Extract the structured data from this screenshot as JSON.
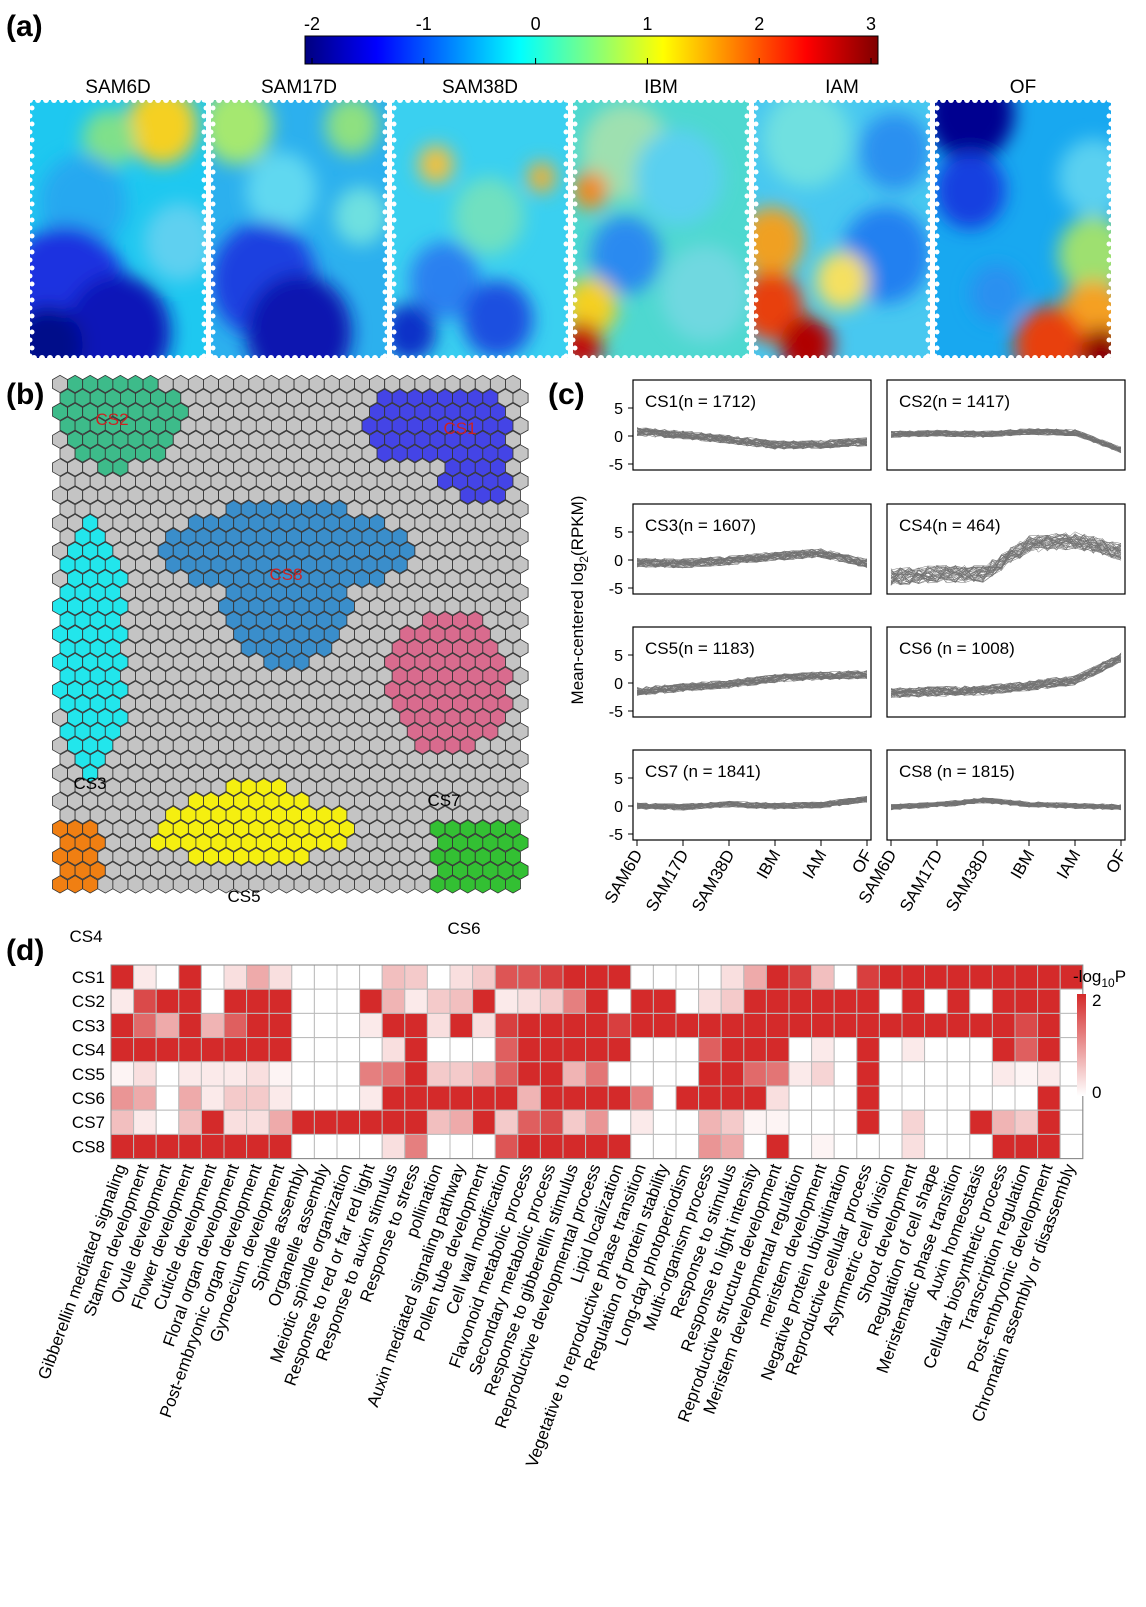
{
  "panels": {
    "a": {
      "label": "(a)",
      "colorbar": {
        "ticks": [
          "-2",
          "-1",
          "0",
          "1",
          "2",
          "3"
        ],
        "range": [
          -2,
          3
        ],
        "colormap": "jet"
      },
      "maps": [
        "SAM6D",
        "SAM17D",
        "SAM38D",
        "IBM",
        "IAM",
        "OF"
      ]
    },
    "b": {
      "label": "(b)",
      "clusters": [
        {
          "name": "CS1",
          "color": "#4444e6",
          "label_color": "#cc2222"
        },
        {
          "name": "CS2",
          "color": "#3dbb8a",
          "label_color": "#cc2222"
        },
        {
          "name": "CS3",
          "color": "#22e6ec",
          "label_color": "#000000"
        },
        {
          "name": "CS4",
          "color": "#f07f12",
          "label_color": "#000000"
        },
        {
          "name": "CS5",
          "color": "#f5ef10",
          "label_color": "#000000"
        },
        {
          "name": "CS6",
          "color": "#33c033",
          "label_color": "#000000"
        },
        {
          "name": "CS7",
          "color": "#d96b8e",
          "label_color": "#000000"
        },
        {
          "name": "CS8",
          "color": "#3a8ecb",
          "label_color": "#cc2222"
        }
      ],
      "background_color": "#c4c4c4"
    },
    "c": {
      "label": "(c)",
      "ylabel_main": "Mean-centered log",
      "ylabel_sub": "2",
      "ylabel_tail": "(RPKM)",
      "yticks": [
        "5",
        "0",
        "-5"
      ],
      "xticks": [
        "SAM6D",
        "SAM17D",
        "SAM38D",
        "IBM",
        "IAM",
        "OF"
      ],
      "boxes": [
        {
          "title": "CS1(n = 1712)"
        },
        {
          "title": "CS2(n = 1417)"
        },
        {
          "title": "CS3(n = 1607)"
        },
        {
          "title": "CS4(n = 464)"
        },
        {
          "title": "CS5(n = 1183)"
        },
        {
          "title": "CS6 (n = 1008)"
        },
        {
          "title": "CS7 (n = 1841)"
        },
        {
          "title": "CS8 (n = 1815)"
        }
      ]
    },
    "d": {
      "label": "(d)",
      "legend_title": "-log",
      "legend_sub": "10",
      "legend_tail": "P",
      "legend_max": "2",
      "legend_min": "0",
      "color": "#d42a2a"
    }
  },
  "chart_data": {
    "type": "heatmap",
    "title": "",
    "rows": [
      "CS1",
      "CS2",
      "CS3",
      "CS4",
      "CS5",
      "CS6",
      "CS7",
      "CS8"
    ],
    "columns": [
      "Gibberellin mediated signaling",
      "Stamen development",
      "Ovule development",
      "Flower development",
      "Cuticle development",
      "Floral organ development",
      "Post-embryonic organ development",
      "Gynoecium development",
      "Spindle assembly",
      "Organelle assembly",
      "Meiotic spindle organization",
      "Response to red or far red light",
      "Response to auxin stimulus",
      "Response to stress",
      "pollination",
      "Auxin mediated signaling pathway",
      "Pollen tube development",
      "Cell wall modification",
      "Flavonoid metabolic process",
      "Secondary metabolic process",
      "Response to gibberellin stimulus",
      "Reproductive developmental process",
      "Lipid localization",
      "Vegetative to reproductive phase transition",
      "Regulation of protein stability",
      "Long-day photoperiodism",
      "Multi-organism process",
      "Response to stimulus",
      "Response to light intensity",
      "Reproductive structure development",
      "Meristem developmental regulation",
      "meristem development",
      "Negative protein ubiquitination",
      "Reproductive cellular process",
      "Asymmetric cell division",
      "Shoot development",
      "Regulation of cell shape",
      "Meristematic phase transition",
      "Auxin homeostasis",
      "Cellular biosynthetic process",
      "Transcription regulation",
      "Post-embryonic development",
      "Chromatin assembly or disassembly"
    ],
    "color_range": [
      0,
      2
    ],
    "values": [
      [
        2,
        0.2,
        0,
        2,
        0,
        0.3,
        0.8,
        0.3,
        0,
        0,
        0,
        0,
        0.6,
        0.5,
        0,
        0.3,
        0.5,
        1.6,
        1.6,
        1.8,
        2,
        2,
        2,
        0,
        0,
        0,
        0,
        0.3,
        0.8,
        2,
        1.8,
        0.6,
        0,
        1.8,
        2,
        2,
        2,
        2,
        2,
        2,
        2,
        2,
        2
      ],
      [
        0.2,
        1.7,
        2,
        2,
        0,
        2,
        2,
        2,
        0,
        0,
        0,
        2,
        0.7,
        0.2,
        0.5,
        0.6,
        2,
        0.2,
        0.3,
        0.5,
        1.2,
        2,
        0,
        2,
        2,
        0,
        0.3,
        0.5,
        2,
        2,
        2,
        2,
        2,
        2,
        0,
        2,
        0,
        2,
        0,
        2,
        2,
        2,
        0
      ],
      [
        2,
        1.4,
        0.8,
        2,
        0.7,
        1.5,
        2,
        2,
        0,
        0,
        0,
        0.2,
        2,
        2,
        0.3,
        2,
        0.3,
        1.8,
        2,
        2,
        2,
        2,
        1.8,
        2,
        2,
        2,
        2,
        2,
        2,
        2,
        2,
        2,
        2,
        2,
        2,
        2,
        2,
        2,
        2,
        2,
        1.7,
        2,
        0
      ],
      [
        2,
        2,
        2,
        2,
        2,
        2,
        2,
        2,
        0,
        0,
        0,
        0,
        0.3,
        2,
        0,
        0,
        0,
        1.5,
        2,
        2,
        2,
        2,
        2,
        0,
        0,
        0,
        1.5,
        2,
        2,
        2,
        0,
        0.2,
        0,
        2,
        0,
        0.2,
        0,
        0,
        0,
        2,
        1.5,
        2,
        0
      ],
      [
        0.1,
        0.3,
        0,
        0.2,
        0.2,
        0.2,
        0.3,
        0.1,
        0,
        0,
        0,
        1.2,
        1.3,
        2,
        0.5,
        0.5,
        0.7,
        1.5,
        2,
        2,
        0.7,
        1.3,
        0,
        0,
        0,
        0,
        2,
        2,
        1.4,
        1.3,
        0.2,
        0.4,
        0,
        2,
        0,
        0,
        0,
        0,
        0,
        0.2,
        0.1,
        0.2,
        0
      ],
      [
        1,
        0.8,
        0,
        0.8,
        0.2,
        0.5,
        0.5,
        0.2,
        0,
        0,
        0,
        0.2,
        2,
        2,
        2,
        2,
        2,
        2,
        0.7,
        2,
        2,
        2,
        2,
        1.2,
        0,
        2,
        2,
        2,
        2,
        0.3,
        0,
        0,
        0,
        2,
        0,
        0,
        0,
        0,
        0,
        0,
        0,
        2,
        0
      ],
      [
        0.6,
        0.2,
        0,
        0.6,
        2,
        0.3,
        0.3,
        0.8,
        2,
        2,
        2,
        2,
        2,
        2,
        0.6,
        0.8,
        2,
        0.5,
        1.5,
        1.7,
        0.5,
        1,
        0,
        0.2,
        0,
        0,
        0.7,
        0.5,
        0.1,
        0.1,
        0,
        0,
        0,
        2,
        0,
        0.4,
        0,
        0,
        2,
        0.7,
        0.5,
        2,
        0
      ],
      [
        2,
        2,
        2,
        2,
        2,
        2,
        2,
        2,
        0,
        0,
        0,
        0,
        0.3,
        1.2,
        0,
        0,
        0,
        1.6,
        2,
        2,
        2,
        2,
        2,
        0,
        0,
        0,
        1,
        0.8,
        0,
        2,
        0,
        0.1,
        0,
        0,
        0,
        0.3,
        0,
        0,
        0,
        2,
        2,
        2,
        0
      ]
    ]
  }
}
